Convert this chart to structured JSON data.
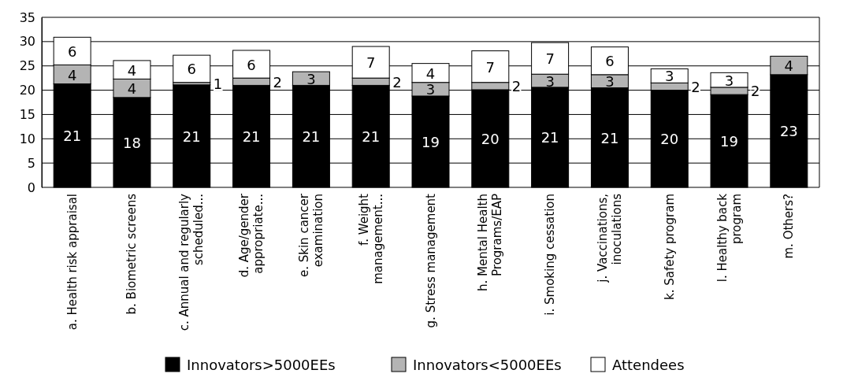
{
  "chart_data": {
    "type": "bar",
    "stacked": true,
    "categories": [
      "a.  Health risk appraisal",
      "b.  Biometric screens",
      "c.  Annual and regularly\nscheduled...",
      "d. Age/gender\nappropriate...",
      "e. Skin cancer\nexamination",
      "f. Weight\nmanagement...",
      "g. Stress management",
      "h. Mental Health\nPrograms/EAP",
      "i. Smoking cessation",
      "j. Vaccinations,\ninoculations",
      "k. Safety program",
      "l. Healthy back\nprogram",
      "m. Others?"
    ],
    "series": [
      {
        "name": "Innovators>5000EEs",
        "color": "#000000",
        "values": [
          21.3,
          18.5,
          21.1,
          21.0,
          21.0,
          21.0,
          18.8,
          20.1,
          20.6,
          20.5,
          20.0,
          19.1,
          23.2
        ],
        "value_labels": [
          "21",
          "18",
          "21",
          "21",
          "21",
          "21",
          "19",
          "20",
          "21",
          "21",
          "20",
          "19",
          "23"
        ]
      },
      {
        "name": "Innovators<5000EEs",
        "color": "#b4b4b4",
        "values": [
          3.9,
          3.8,
          0.5,
          1.5,
          2.8,
          1.5,
          2.8,
          1.5,
          2.7,
          2.7,
          1.5,
          1.5,
          3.8
        ],
        "value_labels": [
          "4",
          "4",
          "1",
          "2",
          "3",
          "2",
          "3",
          "2",
          "3",
          "3",
          "2",
          "2",
          "4"
        ]
      },
      {
        "name": "Attendees",
        "color": "#ffffff",
        "values": [
          5.7,
          3.8,
          5.6,
          5.7,
          null,
          6.5,
          3.9,
          6.5,
          6.5,
          5.7,
          2.9,
          3.0,
          null
        ],
        "value_labels": [
          "6",
          "4",
          "6",
          "6",
          null,
          "7",
          "4",
          "7",
          "7",
          "6",
          "3",
          "3",
          null
        ]
      }
    ],
    "ylim": [
      0,
      35
    ],
    "yticks": [
      0,
      5,
      10,
      15,
      20,
      25,
      30,
      35
    ],
    "grid": "y",
    "legend": "bottom"
  }
}
